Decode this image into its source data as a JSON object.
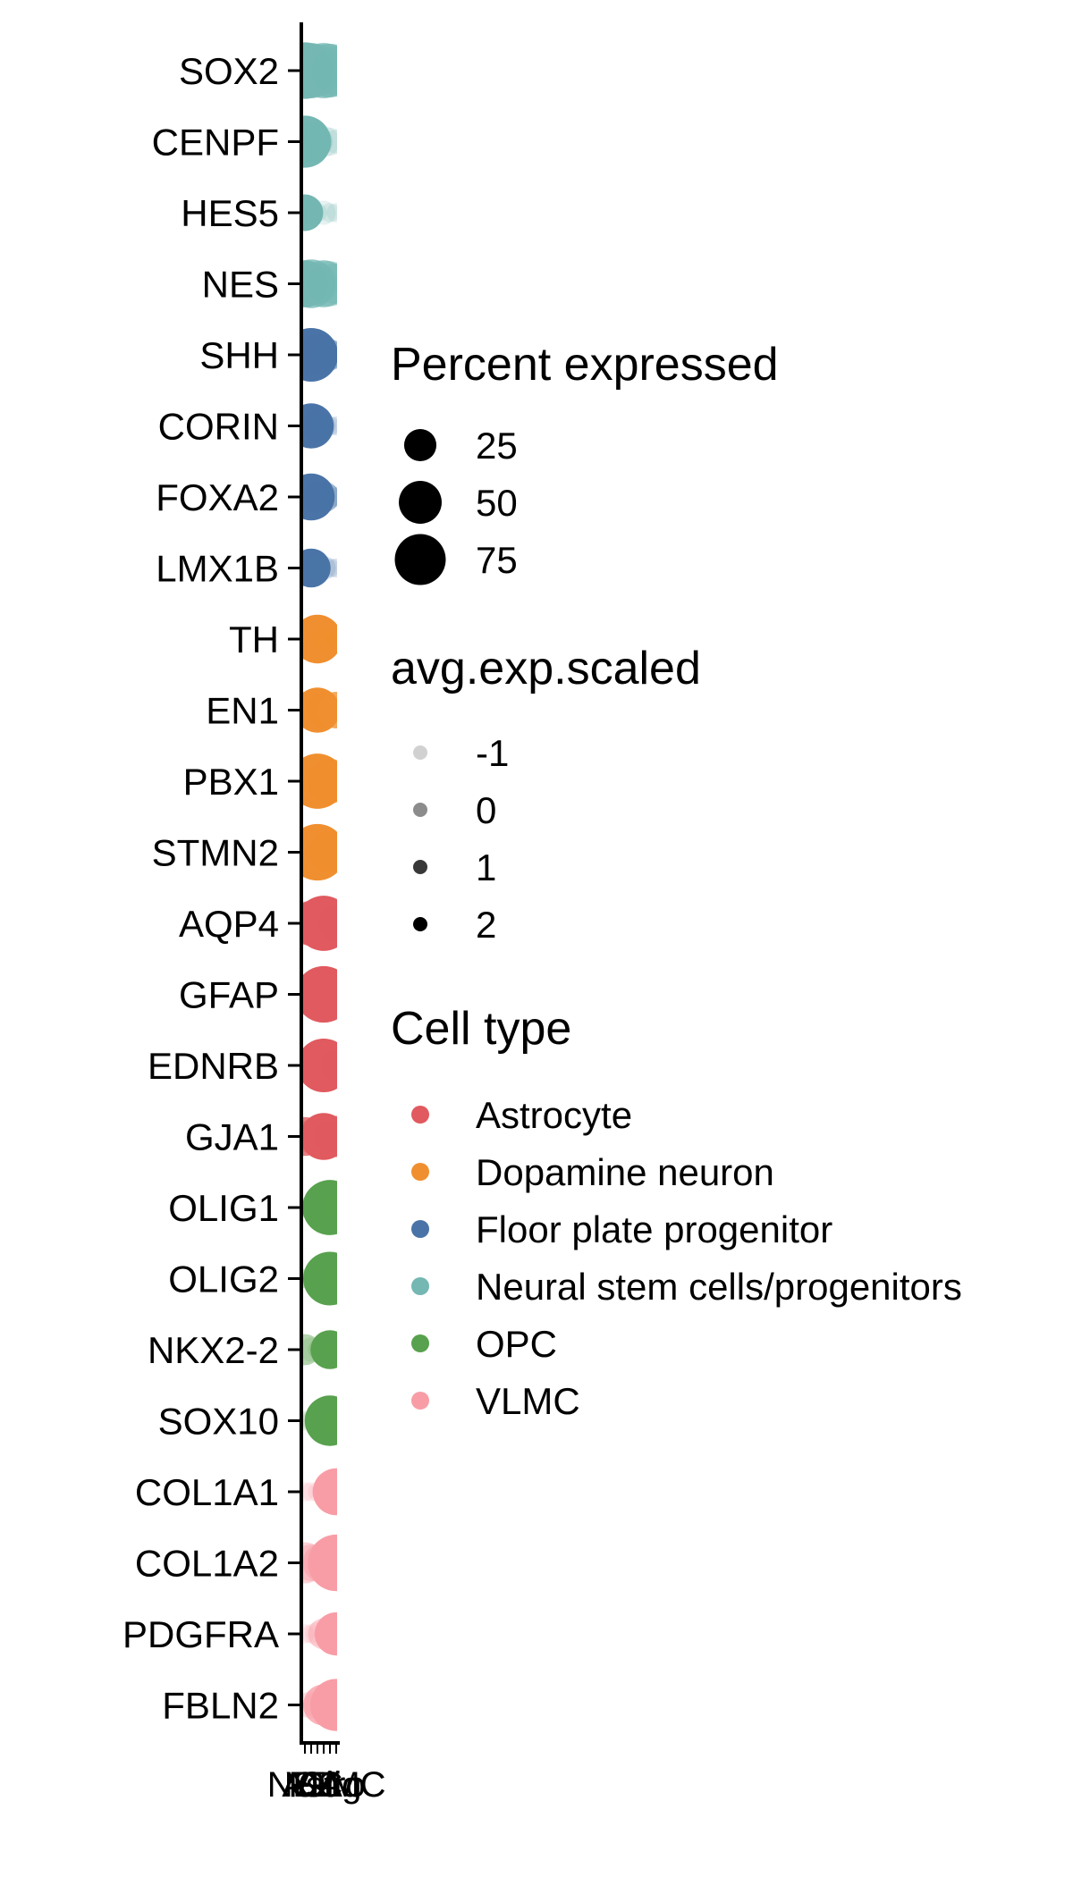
{
  "chart_data": {
    "type": "dotplot",
    "genes": [
      "SOX2",
      "CENPF",
      "HES5",
      "NES",
      "SHH",
      "CORIN",
      "FOXA2",
      "LMX1B",
      "TH",
      "EN1",
      "PBX1",
      "STMN2",
      "AQP4",
      "GFAP",
      "EDNRB",
      "GJA1",
      "OLIG1",
      "OLIG2",
      "NKX2-2",
      "SOX10",
      "COL1A1",
      "COL1A2",
      "PDGFRA",
      "FBLN2"
    ],
    "gene_cell_type": [
      "Neural stem cells/progenitors",
      "Neural stem cells/progenitors",
      "Neural stem cells/progenitors",
      "Neural stem cells/progenitors",
      "Floor plate progenitor",
      "Floor plate progenitor",
      "Floor plate progenitor",
      "Floor plate progenitor",
      "Dopamine neuron",
      "Dopamine neuron",
      "Dopamine neuron",
      "Dopamine neuron",
      "Astrocyte",
      "Astrocyte",
      "Astrocyte",
      "Astrocyte",
      "OPC",
      "OPC",
      "OPC",
      "OPC",
      "VLMC",
      "VLMC",
      "VLMC",
      "VLMC"
    ],
    "x_categories": [
      "NSC",
      "FP",
      "DA",
      "Astro",
      "Olig",
      "VLMC"
    ],
    "series": [
      {
        "name": "NSC",
        "pct": [
          85,
          70,
          30,
          55,
          10,
          5,
          8,
          5,
          10,
          30,
          40,
          30,
          40,
          20,
          10,
          35,
          5,
          5,
          20,
          5,
          5,
          40,
          5,
          10
        ],
        "avg": [
          2,
          2,
          2,
          2,
          -1,
          -1,
          -1,
          -1,
          -1,
          0,
          0,
          0,
          0,
          -1,
          -1,
          1,
          -1,
          -1,
          0,
          -1,
          -1,
          0,
          -1,
          -1
        ]
      },
      {
        "name": "FP",
        "pct": [
          80,
          40,
          10,
          60,
          75,
          50,
          55,
          35,
          20,
          25,
          60,
          55,
          50,
          40,
          15,
          25,
          10,
          10,
          10,
          5,
          5,
          30,
          5,
          15
        ],
        "avg": [
          1,
          0,
          -1,
          1,
          2,
          2,
          2,
          2,
          0,
          1,
          1,
          0,
          1,
          0,
          -1,
          0,
          -1,
          -1,
          -1,
          -1,
          -1,
          0,
          -1,
          -1
        ]
      },
      {
        "name": "DA",
        "pct": [
          70,
          20,
          5,
          40,
          40,
          20,
          20,
          10,
          60,
          50,
          80,
          85,
          60,
          50,
          30,
          20,
          20,
          10,
          5,
          10,
          5,
          20,
          10,
          15
        ],
        "avg": [
          0,
          -1,
          -1,
          0,
          0,
          0,
          0,
          -1,
          2,
          2,
          2,
          2,
          1,
          1,
          0,
          -1,
          0,
          -1,
          -1,
          -1,
          -1,
          -1,
          -1,
          -1
        ]
      },
      {
        "name": "Astro",
        "pct": [
          80,
          20,
          10,
          55,
          30,
          10,
          20,
          10,
          10,
          25,
          60,
          60,
          80,
          85,
          75,
          55,
          40,
          30,
          10,
          20,
          10,
          40,
          20,
          40
        ],
        "avg": [
          1,
          -1,
          -1,
          1,
          0,
          -1,
          0,
          -1,
          -1,
          0,
          1,
          1,
          2,
          2,
          2,
          2,
          1,
          0,
          -1,
          0,
          -1,
          0,
          0,
          1
        ]
      },
      {
        "name": "Olig",
        "pct": [
          75,
          15,
          5,
          50,
          20,
          5,
          10,
          5,
          10,
          15,
          50,
          40,
          40,
          40,
          40,
          20,
          80,
          75,
          35,
          65,
          10,
          30,
          20,
          20
        ],
        "avg": [
          1,
          -1,
          -1,
          0,
          -1,
          -1,
          -1,
          -1,
          -1,
          -1,
          0,
          0,
          0,
          0,
          1,
          -1,
          2,
          2,
          2,
          2,
          -1,
          0,
          0,
          -1
        ]
      },
      {
        "name": "VLMC",
        "pct": [
          60,
          10,
          5,
          40,
          15,
          5,
          5,
          5,
          5,
          30,
          40,
          30,
          30,
          30,
          20,
          40,
          10,
          10,
          5,
          10,
          55,
          85,
          45,
          70
        ],
        "avg": [
          0,
          -1,
          -1,
          0,
          -1,
          -1,
          -1,
          -1,
          -1,
          1,
          0,
          -1,
          -1,
          0,
          -1,
          1,
          -1,
          -1,
          -1,
          -1,
          2,
          2,
          2,
          2
        ]
      }
    ],
    "size_legend": {
      "title": "Percent expressed",
      "values": [
        25,
        50,
        75
      ]
    },
    "color_legend": {
      "title": "avg.exp.scaled",
      "values": [
        -1,
        0,
        1,
        2
      ]
    },
    "cell_type_legend": {
      "title": "Cell type",
      "items": [
        {
          "label": "Astrocyte",
          "color": "#E05A5F"
        },
        {
          "label": "Dopamine neuron",
          "color": "#F08F2F"
        },
        {
          "label": "Floor plate progenitor",
          "color": "#4A74A7"
        },
        {
          "label": "Neural stem cells/progenitors",
          "color": "#74B7B3"
        },
        {
          "label": "OPC",
          "color": "#58A14E"
        },
        {
          "label": "VLMC",
          "color": "#F89DA6"
        }
      ]
    }
  }
}
